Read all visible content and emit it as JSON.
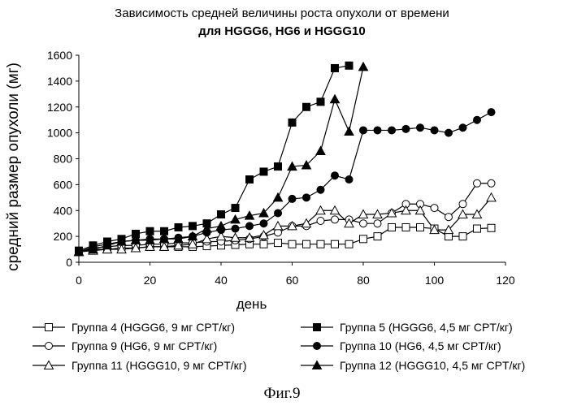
{
  "title_line1": "Зависимость средней величины роста опухоли от времени",
  "title_line2": "для HGGG6, HG6 и HGGG10",
  "figure_label": "Фиг.9",
  "chart_data": {
    "type": "line",
    "xlabel": "день",
    "ylabel": "средний размер опухоли (мг)",
    "xlim": [
      0,
      120
    ],
    "ylim": [
      0,
      1600
    ],
    "xticks": [
      "0",
      "20",
      "40",
      "60",
      "80",
      "100",
      "120"
    ],
    "yticks": [
      "0",
      "200",
      "400",
      "600",
      "800",
      "1000",
      "1200",
      "1400",
      "1600"
    ],
    "grid": false,
    "legend_placement": "bottom",
    "series": [
      {
        "name": "Группа 4 (HGGG6, 9 мг CPT/кг)",
        "marker": "square-open",
        "x": [
          0,
          4,
          8,
          12,
          16,
          20,
          24,
          28,
          32,
          36,
          40,
          44,
          48,
          52,
          56,
          60,
          64,
          68,
          72,
          76,
          80,
          84,
          88,
          92,
          96,
          100,
          104,
          108,
          112,
          116
        ],
        "y": [
          80,
          100,
          100,
          110,
          110,
          120,
          120,
          120,
          120,
          125,
          130,
          135,
          140,
          140,
          150,
          140,
          140,
          140,
          140,
          140,
          180,
          200,
          270,
          270,
          270,
          260,
          200,
          200,
          260,
          265
        ]
      },
      {
        "name": "Группа 9 (HG6, 9 мг CPT/кг)",
        "marker": "circle-open",
        "x": [
          0,
          4,
          8,
          12,
          16,
          20,
          24,
          28,
          32,
          36,
          40,
          44,
          48,
          52,
          56,
          60,
          64,
          68,
          72,
          76,
          80,
          84,
          88,
          92,
          96,
          100,
          104,
          108,
          112,
          116
        ],
        "y": [
          80,
          110,
          120,
          130,
          130,
          140,
          140,
          150,
          150,
          160,
          160,
          170,
          180,
          200,
          230,
          280,
          280,
          320,
          330,
          330,
          300,
          300,
          380,
          450,
          450,
          420,
          350,
          450,
          610,
          610
        ]
      },
      {
        "name": "Группа 11 (HGGG10, 9 мг CPT/кг)",
        "marker": "triangle-open",
        "x": [
          0,
          4,
          8,
          12,
          16,
          20,
          24,
          28,
          32,
          36,
          40,
          44,
          48,
          52,
          56,
          60,
          64,
          68,
          72,
          76,
          80,
          84,
          88,
          92,
          96,
          100,
          104,
          108,
          112,
          116
        ],
        "y": [
          80,
          90,
          100,
          100,
          110,
          120,
          120,
          130,
          140,
          180,
          200,
          190,
          190,
          210,
          280,
          280,
          300,
          400,
          400,
          300,
          370,
          370,
          380,
          400,
          400,
          250,
          250,
          370,
          370,
          500
        ]
      },
      {
        "name": "Группа 5 (HGGG6, 4,5 мг CPT/кг)",
        "marker": "square-filled",
        "x": [
          0,
          4,
          8,
          12,
          16,
          20,
          24,
          28,
          32,
          36,
          40,
          44,
          48,
          52,
          56,
          60,
          64,
          68,
          72,
          76
        ],
        "y": [
          90,
          130,
          160,
          180,
          220,
          240,
          240,
          270,
          280,
          300,
          370,
          420,
          640,
          700,
          740,
          1080,
          1200,
          1240,
          1500,
          1520
        ]
      },
      {
        "name": "Группа 10 (HG6, 4,5 мг CPT/кг)",
        "marker": "circle-filled",
        "x": [
          0,
          4,
          8,
          12,
          16,
          20,
          24,
          28,
          32,
          36,
          40,
          44,
          48,
          52,
          56,
          60,
          64,
          68,
          72,
          76,
          80,
          84,
          88,
          92,
          96,
          100,
          104,
          108,
          112,
          116
        ],
        "y": [
          80,
          120,
          140,
          160,
          170,
          180,
          180,
          190,
          200,
          230,
          250,
          260,
          280,
          300,
          380,
          490,
          500,
          560,
          670,
          640,
          1020,
          1020,
          1020,
          1030,
          1040,
          1020,
          1000,
          1040,
          1100,
          1160
        ]
      },
      {
        "name": "Группа 12 (HGGG10, 4,5 мг CPT/кг)",
        "marker": "triangle-filled",
        "x": [
          0,
          4,
          8,
          12,
          16,
          20,
          24,
          28,
          32,
          36,
          40,
          44,
          48,
          52,
          56,
          60,
          64,
          68,
          72,
          76,
          80
        ],
        "y": [
          80,
          100,
          130,
          160,
          170,
          170,
          180,
          180,
          200,
          260,
          280,
          330,
          360,
          380,
          500,
          740,
          750,
          860,
          1260,
          1010,
          1510
        ]
      }
    ]
  }
}
